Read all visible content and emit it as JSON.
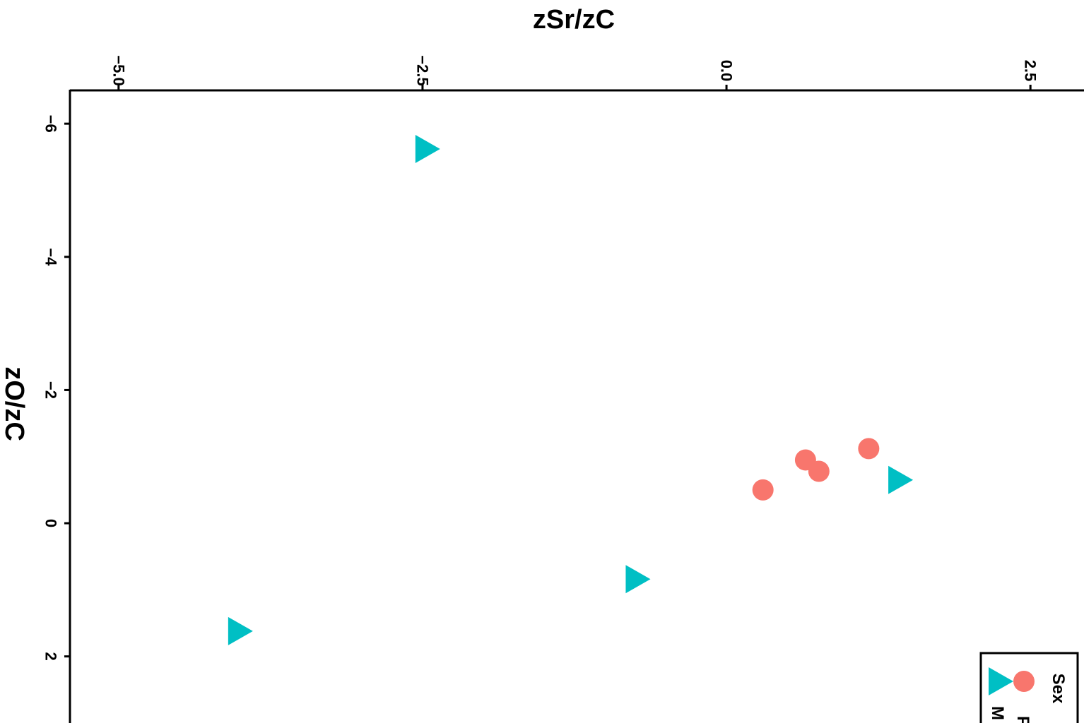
{
  "chart_data": {
    "type": "scatter",
    "title": "",
    "xlabel": "zSr/zC",
    "ylabel": "zO/zC",
    "x_axis_position": "top",
    "xlim": [
      -5.4,
      2.9
    ],
    "ylim": [
      -6.5,
      3.0
    ],
    "xticks": [
      {
        "value": -5.0,
        "label": "−5.0"
      },
      {
        "value": -2.5,
        "label": "−2.5"
      },
      {
        "value": 0.0,
        "label": "0.0"
      },
      {
        "value": 2.5,
        "label": "2.5"
      }
    ],
    "yticks": [
      {
        "value": -6,
        "label": "−6"
      },
      {
        "value": -4,
        "label": "−4"
      },
      {
        "value": -2,
        "label": "−2"
      },
      {
        "value": 0,
        "label": "0"
      },
      {
        "value": 2,
        "label": "2"
      }
    ],
    "grid": false,
    "legend": {
      "title": "Sex",
      "placement": "bottom-right"
    },
    "series": [
      {
        "name": "F",
        "marker": "circle",
        "color": "#F8766D",
        "points": [
          {
            "x": 0.3,
            "y": -0.5
          },
          {
            "x": 0.65,
            "y": -0.95
          },
          {
            "x": 0.76,
            "y": -0.78
          },
          {
            "x": 1.17,
            "y": -1.12
          }
        ]
      },
      {
        "name": "M",
        "marker": "triangle",
        "color": "#00BFC4",
        "points": [
          {
            "x": -2.46,
            "y": -5.62
          },
          {
            "x": 1.43,
            "y": -0.65
          },
          {
            "x": -0.73,
            "y": 0.84
          },
          {
            "x": -4.0,
            "y": 1.62
          }
        ]
      }
    ]
  }
}
